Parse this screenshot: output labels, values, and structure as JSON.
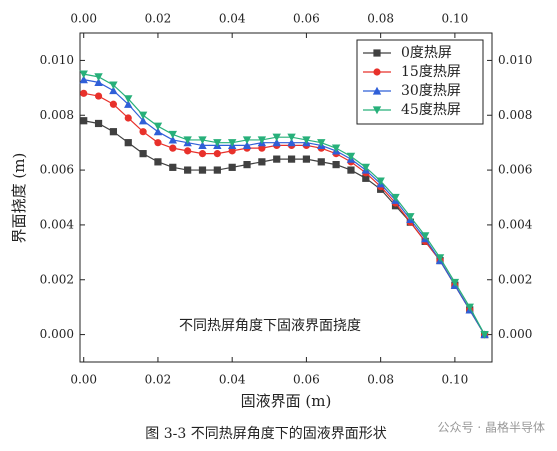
{
  "chart_data": {
    "type": "line",
    "annotation": "不同热屏角度下固液界面挠度",
    "x_label": "固液界面 (m)",
    "y_label": "界面挠度 (m)",
    "caption": "图 3-3   不同热屏角度下的固液界面形状",
    "watermark": "公众号 · 晶格半导体",
    "x": [
      0,
      0.004,
      0.008,
      0.012,
      0.016,
      0.02,
      0.024,
      0.028,
      0.032,
      0.036,
      0.04,
      0.044,
      0.048,
      0.052,
      0.056,
      0.06,
      0.064,
      0.068,
      0.072,
      0.076,
      0.08,
      0.084,
      0.088,
      0.092,
      0.096,
      0.1,
      0.104,
      0.108
    ],
    "series": [
      {
        "name": "0度热屏",
        "color": "#404040",
        "marker": "square",
        "values": [
          0.0078,
          0.0077,
          0.0074,
          0.007,
          0.0066,
          0.0063,
          0.0061,
          0.006,
          0.006,
          0.006,
          0.0061,
          0.0062,
          0.0063,
          0.0064,
          0.0064,
          0.0064,
          0.0063,
          0.0062,
          0.006,
          0.0057,
          0.0053,
          0.0047,
          0.0041,
          0.0034,
          0.0027,
          0.0018,
          0.0009,
          0.0
        ]
      },
      {
        "name": "15度热屏",
        "color": "#e8312b",
        "marker": "circle",
        "values": [
          0.0088,
          0.0087,
          0.0084,
          0.0079,
          0.0074,
          0.007,
          0.0068,
          0.0067,
          0.0066,
          0.0066,
          0.0067,
          0.0068,
          0.0068,
          0.0069,
          0.0069,
          0.0069,
          0.0068,
          0.0066,
          0.0063,
          0.0059,
          0.0054,
          0.0048,
          0.0041,
          0.0034,
          0.0027,
          0.0018,
          0.0009,
          0.0
        ]
      },
      {
        "name": "30度热屏",
        "color": "#2f5fd8",
        "marker": "triangle-up",
        "values": [
          0.0093,
          0.0092,
          0.0089,
          0.0084,
          0.0078,
          0.0074,
          0.0071,
          0.007,
          0.0069,
          0.0069,
          0.0069,
          0.0069,
          0.007,
          0.007,
          0.007,
          0.007,
          0.0069,
          0.0067,
          0.0064,
          0.006,
          0.0055,
          0.0049,
          0.0042,
          0.0035,
          0.0027,
          0.0018,
          0.0009,
          0.0
        ]
      },
      {
        "name": "45度热屏",
        "color": "#27b07a",
        "marker": "triangle-down",
        "values": [
          0.0095,
          0.0094,
          0.0091,
          0.0086,
          0.008,
          0.0076,
          0.0073,
          0.0071,
          0.0071,
          0.007,
          0.007,
          0.0071,
          0.0071,
          0.0072,
          0.0072,
          0.0071,
          0.007,
          0.0068,
          0.0065,
          0.0061,
          0.0056,
          0.005,
          0.0043,
          0.0036,
          0.0028,
          0.0019,
          0.001,
          0.0
        ]
      }
    ],
    "xlim": [
      -0.001,
      0.11
    ],
    "ylim": [
      -0.001,
      0.011
    ],
    "xticks": [
      {
        "value": 0,
        "label": "0.00"
      },
      0.02,
      0.04,
      0.06,
      0.08,
      {
        "value": 0.1,
        "label": "0.10"
      }
    ],
    "yticks": [
      {
        "value": 0,
        "label": "0.000"
      },
      0.002,
      0.004,
      0.006,
      0.008,
      {
        "value": 0.01,
        "label": "0.010"
      }
    ],
    "mirror_axes": true,
    "legend": "upper right"
  }
}
